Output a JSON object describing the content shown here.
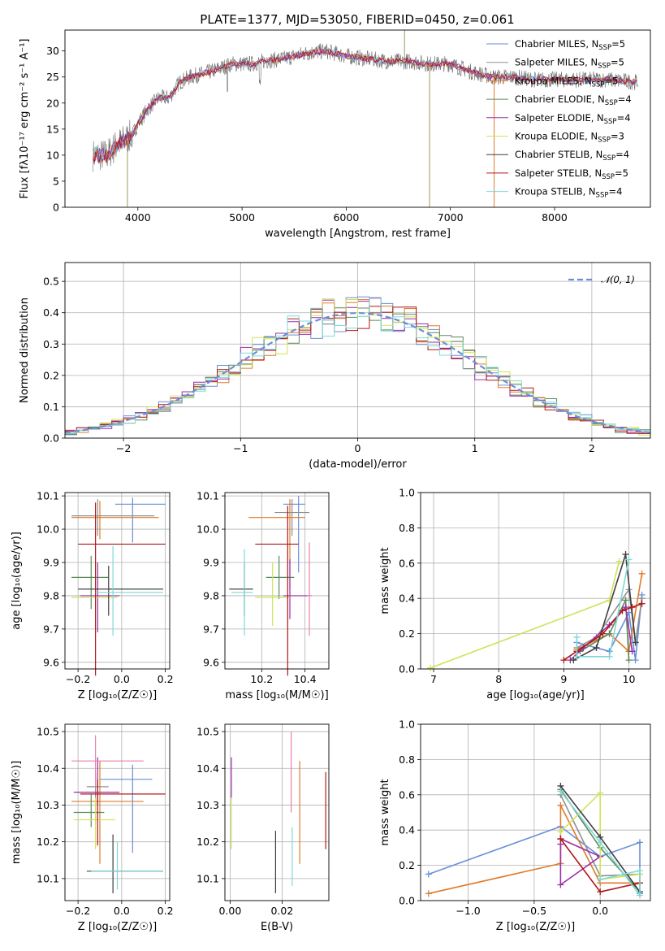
{
  "figure_title": "PLATE=1377, MJD=53050, FIBERID=0450, z=0.061",
  "colors": {
    "chabrier_miles": "#6a8fd8",
    "salpeter_miles": "#909090",
    "kroupa_miles": "#e07b2a",
    "chabrier_elodie": "#5a8a5a",
    "salpeter_elodie": "#9b2ea8",
    "kroupa_elodie": "#cfe35a",
    "chabrier_stelib": "#404040",
    "salpeter_stelib": "#b01818",
    "kroupa_stelib": "#7fd8d8",
    "extra_pink": "#e87fb0",
    "grid": "#b0b0b0"
  },
  "legend_spectrum": [
    {
      "label": "Chabrier MILES, N",
      "sub": "SSP",
      "suffix": "=5"
    },
    {
      "label": "Salpeter MILES, N",
      "sub": "SSP",
      "suffix": "=5"
    },
    {
      "label": "Kroupa MILES, N",
      "sub": "SSP",
      "suffix": "=5"
    },
    {
      "label": "Chabrier ELODIE, N",
      "sub": "SSP",
      "suffix": "=4"
    },
    {
      "label": "Salpeter ELODIE, N",
      "sub": "SSP",
      "suffix": "=4"
    },
    {
      "label": "Kroupa ELODIE, N",
      "sub": "SSP",
      "suffix": "=3"
    },
    {
      "label": "Chabrier STELIB, N",
      "sub": "SSP",
      "suffix": "=4"
    },
    {
      "label": "Salpeter STELIB, N",
      "sub": "SSP",
      "suffix": "=5"
    },
    {
      "label": "Kroupa STELIB, N",
      "sub": "SSP",
      "suffix": "=4"
    }
  ],
  "legend_hist": {
    "label": "𝒩(0, 1)"
  },
  "chart_data": [
    {
      "id": "spectrum",
      "type": "line",
      "xlabel": "wavelength [Angstrom, rest frame]",
      "ylabel": "Flux [fλ10⁻¹⁷ erg cm⁻² s⁻¹ A⁻¹]",
      "xlim": [
        3300,
        8920
      ],
      "ylim": [
        0,
        34
      ],
      "xticks": [
        4000,
        5000,
        6000,
        7000,
        8000
      ],
      "yticks": [
        0,
        5,
        10,
        15,
        20,
        25,
        30
      ],
      "continuum": [
        [
          3570,
          10
        ],
        [
          3700,
          10
        ],
        [
          3800,
          12
        ],
        [
          3880,
          13
        ],
        [
          3950,
          14
        ],
        [
          4000,
          16
        ],
        [
          4100,
          19
        ],
        [
          4200,
          21
        ],
        [
          4300,
          21
        ],
        [
          4400,
          24
        ],
        [
          4500,
          25
        ],
        [
          4700,
          26
        ],
        [
          4900,
          27.5
        ],
        [
          5100,
          27.5
        ],
        [
          5200,
          28
        ],
        [
          5400,
          28.5
        ],
        [
          5600,
          29.5
        ],
        [
          5800,
          30
        ],
        [
          6000,
          29
        ],
        [
          6200,
          28.5
        ],
        [
          6400,
          28
        ],
        [
          6600,
          28
        ],
        [
          6800,
          27.5
        ],
        [
          7000,
          27.5
        ],
        [
          7200,
          26
        ],
        [
          7400,
          25
        ],
        [
          7600,
          25
        ],
        [
          7800,
          24.5
        ],
        [
          8000,
          24.5
        ],
        [
          8200,
          24.5
        ],
        [
          8500,
          24.5
        ],
        [
          8800,
          24
        ]
      ],
      "spikes": [
        [
          3900,
          0
        ],
        [
          6800,
          0
        ],
        [
          7420,
          0
        ],
        [
          6560,
          36
        ]
      ]
    },
    {
      "id": "residual_hist",
      "type": "histogram",
      "xlabel": "(data-model)/error",
      "ylabel": "Normed distribution",
      "xlim": [
        -2.5,
        2.5
      ],
      "ylim": [
        0,
        0.56
      ],
      "xticks": [
        -2,
        -1,
        0,
        1,
        2
      ],
      "yticks": [
        0.0,
        0.1,
        0.2,
        0.3,
        0.4,
        0.5
      ],
      "bin_width": 0.1,
      "normal_curve": "N(0,1)"
    },
    {
      "id": "age_vs_Z",
      "type": "errorbar",
      "xlabel": "Z [log₁₀(Z/Z☉)]",
      "ylabel": "age  [log₁₀(age/yr)]",
      "xlim": [
        -0.26,
        0.22
      ],
      "ylim": [
        9.58,
        10.11
      ],
      "xticks": [
        -0.2,
        0.0,
        0.2
      ],
      "yticks": [
        9.6,
        9.7,
        9.8,
        9.9,
        10.0,
        10.1
      ],
      "points": [
        {
          "s": "chabrier_miles",
          "x": 0.05,
          "xl": -0.03,
          "xh": 0.2,
          "y": 10.075,
          "yl": 9.96,
          "yh": 10.095
        },
        {
          "s": "salpeter_miles",
          "x": -0.11,
          "xl": -0.23,
          "xh": 0.15,
          "y": 10.04,
          "yl": 9.98,
          "yh": 10.09
        },
        {
          "s": "kroupa_miles",
          "x": -0.1,
          "xl": -0.23,
          "xh": 0.17,
          "y": 10.035,
          "yl": 9.97,
          "yh": 10.085
        },
        {
          "s": "chabrier_elodie",
          "x": -0.14,
          "xl": -0.23,
          "xh": -0.06,
          "y": 9.855,
          "yl": 9.76,
          "yh": 9.92
        },
        {
          "s": "salpeter_elodie",
          "x": -0.11,
          "xl": -0.19,
          "xh": -0.01,
          "y": 9.8,
          "yl": 9.69,
          "yh": 9.9
        },
        {
          "s": "kroupa_elodie",
          "x": -0.12,
          "xl": -0.23,
          "xh": -0.02,
          "y": 9.795,
          "yl": 9.7,
          "yh": 9.9
        },
        {
          "s": "chabrier_stelib",
          "x": -0.06,
          "xl": -0.2,
          "xh": 0.19,
          "y": 9.82,
          "yl": 9.74,
          "yh": 9.89
        },
        {
          "s": "salpeter_stelib",
          "x": -0.12,
          "xl": -0.2,
          "xh": 0.2,
          "y": 9.955,
          "yl": 9.56,
          "yh": 10.08
        },
        {
          "s": "kroupa_stelib",
          "x": -0.04,
          "xl": -0.12,
          "xh": 0.19,
          "y": 9.81,
          "yl": 9.68,
          "yh": 9.95
        }
      ]
    },
    {
      "id": "age_vs_mass",
      "type": "errorbar",
      "xlabel": "mass [log₁₀(M/M☉)]",
      "ylabel": "",
      "xlim": [
        10.03,
        10.51
      ],
      "ylim": [
        9.58,
        10.11
      ],
      "xticks": [
        10.2,
        10.4
      ],
      "yticks": [
        9.6,
        9.7,
        9.8,
        9.9,
        10.0,
        10.1
      ],
      "points": [
        {
          "s": "chabrier_miles",
          "x": 10.37,
          "xl": 10.3,
          "xh": 10.4,
          "y": 10.075,
          "yl": 9.87,
          "yh": 10.1
        },
        {
          "s": "salpeter_miles",
          "x": 10.34,
          "xl": 10.26,
          "xh": 10.42,
          "y": 10.05,
          "yl": 9.98,
          "yh": 10.09
        },
        {
          "s": "kroupa_miles",
          "x": 10.33,
          "xl": 10.14,
          "xh": 10.4,
          "y": 10.035,
          "yl": 9.82,
          "yh": 10.09
        },
        {
          "s": "chabrier_elodie",
          "x": 10.28,
          "xl": 10.22,
          "xh": 10.35,
          "y": 9.855,
          "yl": 9.79,
          "yh": 9.92
        },
        {
          "s": "salpeter_elodie",
          "x": 10.33,
          "xl": 10.3,
          "xh": 10.43,
          "y": 9.8,
          "yl": 9.73,
          "yh": 9.91
        },
        {
          "s": "kroupa_elodie",
          "x": 10.25,
          "xl": 10.17,
          "xh": 10.33,
          "y": 9.795,
          "yl": 9.71,
          "yh": 9.9
        },
        {
          "s": "chabrier_stelib",
          "x": 10.12,
          "xl": 10.05,
          "xh": 10.16,
          "y": 9.82,
          "yl": 9.74,
          "yh": 9.9
        },
        {
          "s": "salpeter_stelib",
          "x": 10.32,
          "xl": 10.17,
          "xh": 10.37,
          "y": 9.955,
          "yl": 9.56,
          "yh": 10.07
        },
        {
          "s": "kroupa_stelib",
          "x": 10.12,
          "xl": 10.06,
          "xh": 10.16,
          "y": 9.81,
          "yl": 9.68,
          "yh": 9.94
        },
        {
          "s": "extra_pink",
          "x": 10.42,
          "xl": 10.41,
          "xh": 10.43,
          "y": 9.8,
          "yl": 9.68,
          "yh": 9.96
        }
      ]
    },
    {
      "id": "weight_vs_age",
      "type": "line",
      "xlabel": "age  [log₁₀(age/yr)]",
      "ylabel": "mass weight",
      "xlim": [
        6.8,
        10.33
      ],
      "ylim": [
        0,
        1.0
      ],
      "xticks": [
        7,
        8,
        9,
        10
      ],
      "yticks": [
        0.0,
        0.2,
        0.4,
        0.6,
        0.8,
        1.0
      ],
      "series": [
        {
          "s": "chabrier_miles",
          "points": [
            [
              9.2,
              0.15
            ],
            [
              9.7,
              0.1
            ],
            [
              10.0,
              0.32
            ],
            [
              10.1,
              0.05
            ],
            [
              10.2,
              0.42
            ]
          ]
        },
        {
          "s": "salpeter_miles",
          "points": [
            [
              9.2,
              0.12
            ],
            [
              9.5,
              0.18
            ],
            [
              10.0,
              0.45
            ],
            [
              10.1,
              0.15
            ],
            [
              10.2,
              0.4
            ]
          ]
        },
        {
          "s": "kroupa_miles",
          "points": [
            [
              9.2,
              0.11
            ],
            [
              9.7,
              0.2
            ],
            [
              10.0,
              0.1
            ],
            [
              10.2,
              0.54
            ]
          ]
        },
        {
          "s": "chabrier_elodie",
          "points": [
            [
              9.25,
              0.1
            ],
            [
              9.7,
              0.2
            ],
            [
              9.95,
              0.39
            ],
            [
              10.0,
              0.05
            ]
          ]
        },
        {
          "s": "salpeter_elodie",
          "points": [
            [
              9.1,
              0.05
            ],
            [
              9.3,
              0.12
            ],
            [
              9.7,
              0.25
            ],
            [
              9.95,
              0.35
            ],
            [
              10.05,
              0.1
            ]
          ]
        },
        {
          "s": "kroupa_elodie",
          "points": [
            [
              6.95,
              0.005
            ],
            [
              9.7,
              0.39
            ],
            [
              9.85,
              0.61
            ]
          ]
        },
        {
          "s": "chabrier_stelib",
          "points": [
            [
              9.15,
              0.05
            ],
            [
              9.5,
              0.12
            ],
            [
              9.95,
              0.65
            ],
            [
              10.1,
              0.15
            ]
          ]
        },
        {
          "s": "salpeter_stelib",
          "points": [
            [
              9.0,
              0.05
            ],
            [
              9.2,
              0.1
            ],
            [
              9.6,
              0.2
            ],
            [
              9.9,
              0.33
            ],
            [
              10.05,
              0.35
            ],
            [
              10.2,
              0.37
            ]
          ]
        },
        {
          "s": "kroupa_stelib",
          "points": [
            [
              9.2,
              0.18
            ],
            [
              9.2,
              0.07
            ],
            [
              9.7,
              0.07
            ],
            [
              10.0,
              0.62
            ]
          ]
        }
      ]
    },
    {
      "id": "mass_vs_Z",
      "type": "errorbar",
      "xlabel": "Z [log₁₀(Z/Z☉)]",
      "ylabel": "mass [log₁₀(M/M☉)]",
      "xlim": [
        -0.26,
        0.22
      ],
      "ylim": [
        10.04,
        10.52
      ],
      "xticks": [
        -0.2,
        0.0,
        0.2
      ],
      "yticks": [
        10.1,
        10.2,
        10.3,
        10.4,
        10.5
      ],
      "points": [
        {
          "s": "chabrier_miles",
          "x": 0.05,
          "xl": -0.1,
          "xh": 0.14,
          "y": 10.37,
          "yl": 10.17,
          "yh": 10.41
        },
        {
          "s": "salpeter_miles",
          "x": -0.12,
          "xl": -0.16,
          "xh": -0.06,
          "y": 10.35,
          "yl": 10.25,
          "yh": 10.39
        },
        {
          "s": "kroupa_miles",
          "x": -0.1,
          "xl": -0.23,
          "xh": 0.1,
          "y": 10.31,
          "yl": 10.14,
          "yh": 10.42
        },
        {
          "s": "chabrier_elodie",
          "x": -0.14,
          "xl": -0.22,
          "xh": -0.08,
          "y": 10.28,
          "yl": 10.24,
          "yh": 10.33
        },
        {
          "s": "salpeter_elodie",
          "x": -0.11,
          "xl": -0.22,
          "xh": -0.01,
          "y": 10.335,
          "yl": 10.3,
          "yh": 10.43
        },
        {
          "s": "kroupa_elodie",
          "x": -0.12,
          "xl": -0.22,
          "xh": -0.03,
          "y": 10.26,
          "yl": 10.18,
          "yh": 10.32
        },
        {
          "s": "chabrier_stelib",
          "x": -0.04,
          "xl": -0.16,
          "xh": 0.19,
          "y": 10.12,
          "yl": 10.06,
          "yh": 10.22
        },
        {
          "s": "salpeter_stelib",
          "x": -0.11,
          "xl": -0.19,
          "xh": 0.2,
          "y": 10.33,
          "yl": 10.19,
          "yh": 10.37
        },
        {
          "s": "kroupa_stelib",
          "x": -0.02,
          "xl": -0.14,
          "xh": 0.19,
          "y": 10.12,
          "yl": 10.07,
          "yh": 10.2
        },
        {
          "s": "extra_pink",
          "x": -0.12,
          "xl": -0.23,
          "xh": 0.1,
          "y": 10.42,
          "yl": 10.35,
          "yh": 10.49
        }
      ]
    },
    {
      "id": "mass_vs_ebv",
      "type": "errorbar",
      "xlabel": "E(B-V)",
      "ylabel": "",
      "xlim": [
        -0.002,
        0.038
      ],
      "ylim": [
        10.04,
        10.52
      ],
      "xticks": [
        0.0,
        0.02
      ],
      "yticks": [
        10.1,
        10.2,
        10.3,
        10.4,
        10.5
      ],
      "points": [
        {
          "s": "salpeter_elodie",
          "x": 0.0005,
          "yl": 10.32,
          "yh": 10.43
        },
        {
          "s": "kroupa_elodie",
          "x": 0.0005,
          "yl": 10.18,
          "yh": 10.32
        },
        {
          "s": "chabrier_stelib",
          "x": 0.0175,
          "yl": 10.06,
          "yh": 10.23
        },
        {
          "s": "extra_pink",
          "x": 0.0235,
          "yl": 10.28,
          "yh": 10.5
        },
        {
          "s": "kroupa_stelib",
          "x": 0.0239,
          "yl": 10.08,
          "yh": 10.24
        },
        {
          "s": "kroupa_miles",
          "x": 0.0268,
          "yl": 10.14,
          "yh": 10.42
        },
        {
          "s": "salpeter_stelib",
          "x": 0.0368,
          "yl": 10.18,
          "yh": 10.39
        }
      ]
    },
    {
      "id": "weight_vs_Z",
      "type": "line",
      "xlabel": "Z [log₁₀(Z/Z☉)]",
      "ylabel": "mass weight",
      "xlim": [
        -1.36,
        0.38
      ],
      "ylim": [
        0,
        1.0
      ],
      "xticks": [
        -1.0,
        -0.5,
        0.0
      ],
      "yticks": [
        0.0,
        0.2,
        0.4,
        0.6,
        0.8,
        1.0
      ],
      "series": [
        {
          "s": "chabrier_miles",
          "points": [
            [
              -1.3,
              0.15
            ],
            [
              -0.3,
              0.42
            ],
            [
              0.0,
              0.25
            ],
            [
              0.3,
              0.33
            ],
            [
              0.3,
              0.04
            ]
          ]
        },
        {
          "s": "salpeter_miles",
          "points": [
            [
              -0.3,
              0.6
            ],
            [
              0.0,
              0.14
            ],
            [
              0.3,
              0.15
            ]
          ]
        },
        {
          "s": "kroupa_miles",
          "points": [
            [
              -1.3,
              0.04
            ],
            [
              -0.3,
              0.21
            ],
            [
              -0.3,
              0.54
            ],
            [
              0.0,
              0.1
            ],
            [
              0.3,
              0.1
            ]
          ]
        },
        {
          "s": "chabrier_elodie",
          "points": [
            [
              -0.3,
              0.63
            ],
            [
              0.0,
              0.3
            ],
            [
              0.3,
              0.05
            ]
          ]
        },
        {
          "s": "salpeter_elodie",
          "points": [
            [
              -0.3,
              0.32
            ],
            [
              -0.3,
              0.09
            ],
            [
              0.0,
              0.25
            ],
            [
              -0.3,
              0.35
            ]
          ]
        },
        {
          "s": "kroupa_elodie",
          "points": [
            [
              -0.3,
              0.39
            ],
            [
              0.0,
              0.61
            ],
            [
              0.0,
              0.12
            ],
            [
              0.3,
              0.15
            ]
          ]
        },
        {
          "s": "chabrier_stelib",
          "points": [
            [
              -0.3,
              0.65
            ],
            [
              0.0,
              0.36
            ],
            [
              0.3,
              0.05
            ]
          ]
        },
        {
          "s": "salpeter_stelib",
          "points": [
            [
              -0.3,
              0.35
            ],
            [
              0.0,
              0.05
            ],
            [
              0.3,
              0.1
            ]
          ]
        },
        {
          "s": "kroupa_stelib",
          "points": [
            [
              -0.3,
              0.62
            ],
            [
              0.0,
              0.33
            ],
            [
              0.3,
              0.03
            ],
            [
              0.3,
              0.17
            ],
            [
              0.0,
              0.12
            ]
          ]
        }
      ]
    }
  ]
}
